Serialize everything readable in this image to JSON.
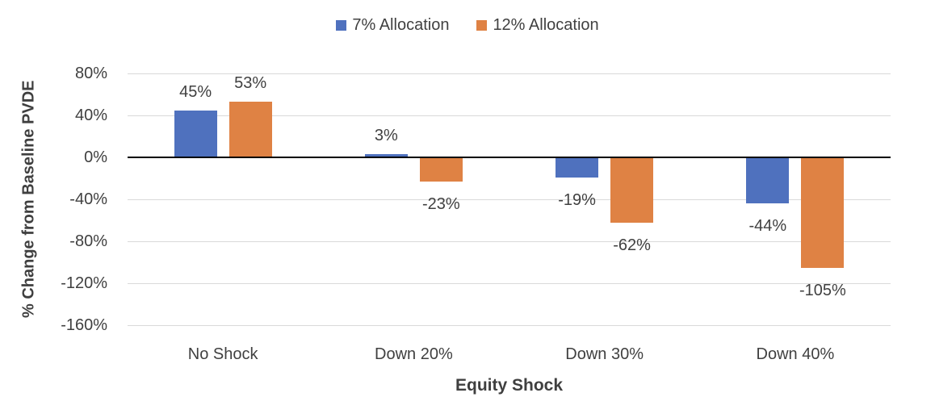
{
  "chart_data": {
    "type": "bar",
    "title": "",
    "categories": [
      "No Shock",
      "Down 20%",
      "Down 30%",
      "Down 40%"
    ],
    "series": [
      {
        "name": "7% Allocation",
        "color": "#4F71BE",
        "values": [
          45,
          3,
          -19,
          -44
        ],
        "data_labels": [
          "45%",
          "3%",
          "-19%",
          "-44%"
        ]
      },
      {
        "name": "12% Allocation",
        "color": "#DF8244",
        "values": [
          53,
          -23,
          -62,
          -105
        ],
        "data_labels": [
          "53%",
          "-23%",
          "-62%",
          "-105%"
        ]
      }
    ],
    "xlabel": "Equity Shock",
    "ylabel": "% Change from Baseline PVDE",
    "ylim": [
      -160,
      80
    ],
    "yticks": [
      80,
      40,
      0,
      -40,
      -80,
      -120,
      -160
    ],
    "ytick_labels": [
      "80%",
      "40%",
      "0%",
      "-40%",
      "-80%",
      "-120%",
      "-160%"
    ],
    "grid": true,
    "legend_position": "top",
    "colors": {
      "gridline": "#D9D9D9",
      "zero_line": "#000000",
      "text": "#404040"
    }
  }
}
